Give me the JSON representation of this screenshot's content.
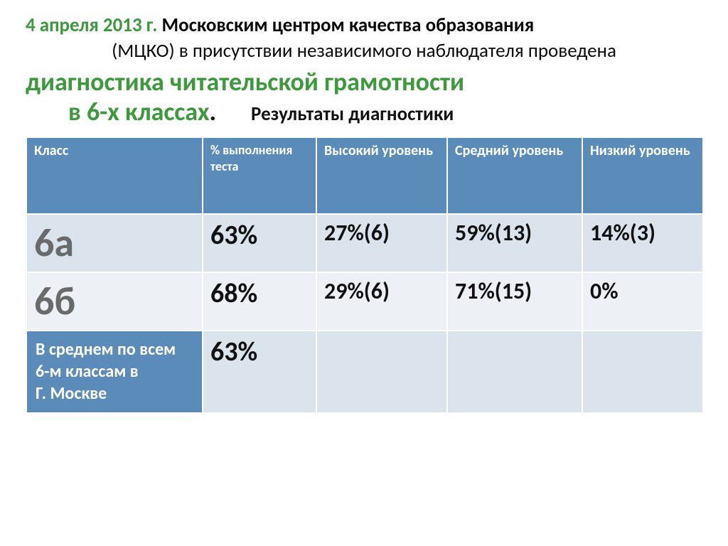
{
  "heading": {
    "date": "4 апреля   2013 г.",
    "line1_rest": " Московским центром качества образования",
    "line2": "(МЦКО)  в присутствии  независимого наблюдателя проведена"
  },
  "subtitle": {
    "line1": "диагностика читательской  грамотности",
    "line2_green": "в 6-х классах",
    "results_label": "Результаты диагностики"
  },
  "table": {
    "columns": [
      "Класс",
      "% выполнения теста",
      "Высокий уровень",
      "Средний уровень",
      " Низкий уровень"
    ],
    "rows": [
      {
        "class": "6а",
        "pct": "63%",
        "high": "27%(6)",
        "mid": "59%(13)",
        "low": "14%(3)"
      },
      {
        "class": "6б",
        "pct": "68%",
        "high": "29%(6)",
        "mid": "71%(15)",
        "low": "0%"
      }
    ],
    "summary": {
      "label_l1": "В среднем по всем",
      "label_l2": "6-м классам в",
      "label_l3": "Г. Москве",
      "pct": "63%"
    },
    "header_bg": "#5b8bb8",
    "row_alt1_bg": "#dbe4ec",
    "row_alt2_bg": "#edf1f5",
    "border_color": "#ffffff"
  }
}
